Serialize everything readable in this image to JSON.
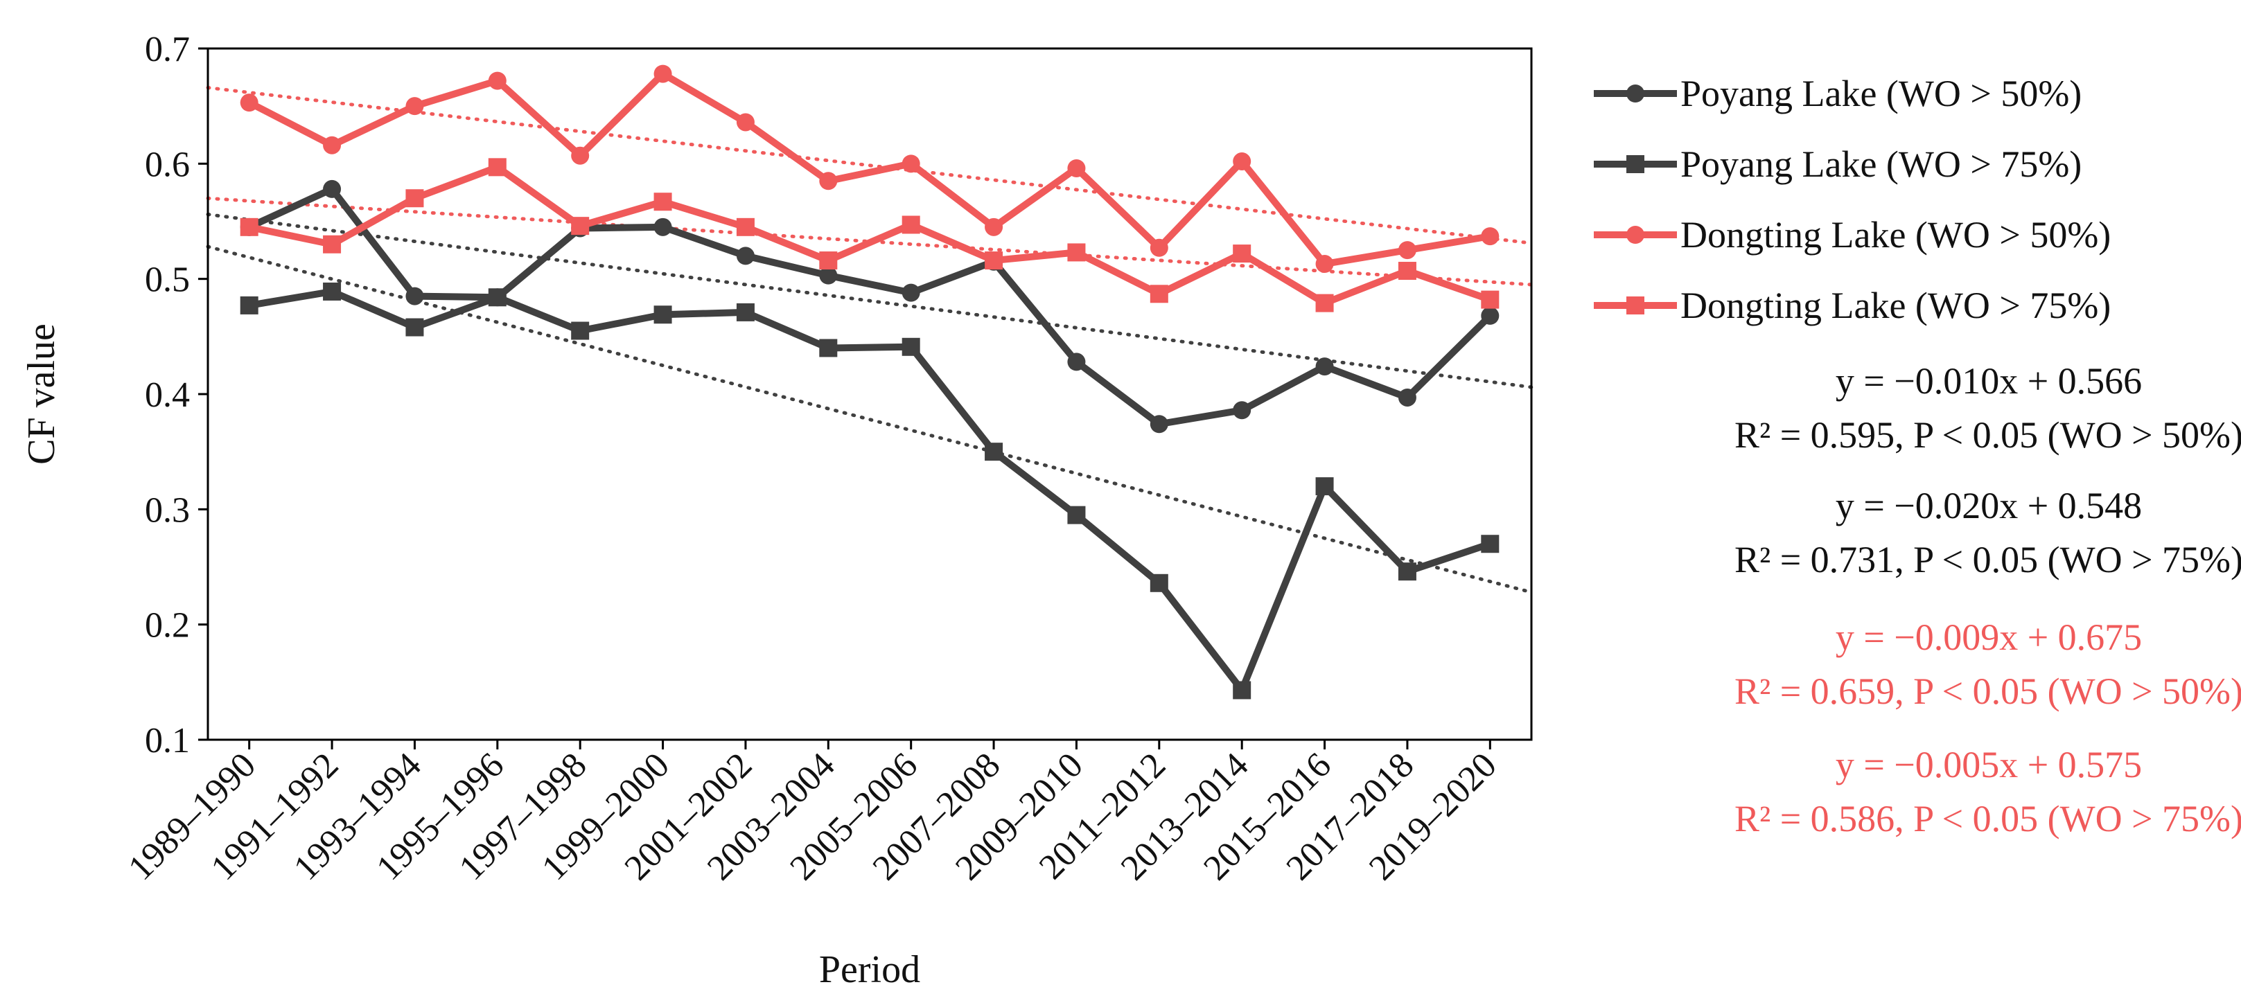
{
  "chart_data": {
    "type": "line",
    "title": "",
    "xlabel": "Period",
    "ylabel": "CF value",
    "ylim": [
      0.1,
      0.7
    ],
    "yticks": [
      "0.1",
      "0.2",
      "0.3",
      "0.4",
      "0.5",
      "0.6",
      "0.7"
    ],
    "grid": false,
    "legend_position": "right",
    "categories": [
      "1989–1990",
      "1991–1992",
      "1993–1994",
      "1995–1996",
      "1997–1998",
      "1999–2000",
      "2001–2002",
      "2003–2004",
      "2005–2006",
      "2007–2008",
      "2009–2010",
      "2011–2012",
      "2013–2014",
      "2015–2016",
      "2017–2018",
      "2019–2020"
    ],
    "series": [
      {
        "name": "Poyang Lake (WO > 50%)",
        "color": "#404040",
        "marker": "circle",
        "values": [
          0.545,
          0.578,
          0.485,
          0.484,
          0.544,
          0.545,
          0.52,
          0.503,
          0.488,
          0.515,
          0.428,
          0.374,
          0.386,
          0.424,
          0.397,
          0.468
        ]
      },
      {
        "name": "Poyang Lake (WO > 75%)",
        "color": "#404040",
        "marker": "square",
        "values": [
          0.477,
          0.489,
          0.458,
          0.484,
          0.455,
          0.469,
          0.471,
          0.44,
          0.441,
          0.35,
          0.295,
          0.236,
          0.143,
          0.32,
          0.246,
          0.27
        ]
      },
      {
        "name": "Dongting Lake (WO > 50%)",
        "color": "#f05a5a",
        "marker": "circle",
        "values": [
          0.653,
          0.616,
          0.65,
          0.672,
          0.607,
          0.678,
          0.636,
          0.585,
          0.6,
          0.545,
          0.596,
          0.527,
          0.602,
          0.513,
          0.525,
          0.537
        ]
      },
      {
        "name": "Dongting Lake (WO > 75%)",
        "color": "#f05a5a",
        "marker": "square",
        "values": [
          0.545,
          0.53,
          0.57,
          0.597,
          0.546,
          0.567,
          0.545,
          0.516,
          0.547,
          0.516,
          0.523,
          0.487,
          0.522,
          0.479,
          0.507,
          0.482
        ]
      }
    ],
    "trendlines": [
      {
        "series": "Poyang Lake (WO > 50%)",
        "slope": -0.01,
        "intercept": 0.566,
        "color": "#404040",
        "style": "dotted"
      },
      {
        "series": "Poyang Lake (WO > 75%)",
        "slope": -0.02,
        "intercept": 0.548,
        "color": "#404040",
        "style": "dotted"
      },
      {
        "series": "Dongting Lake (WO > 50%)",
        "slope": -0.009,
        "intercept": 0.675,
        "color": "#f05a5a",
        "style": "dotted"
      },
      {
        "series": "Dongting Lake (WO > 75%)",
        "slope": -0.005,
        "intercept": 0.575,
        "color": "#f05a5a",
        "style": "dotted"
      }
    ],
    "annotations": [
      {
        "line1": "y = −0.010x + 0.566",
        "line2": "R² = 0.595, P < 0.05 (WO > 50%)",
        "color": "#111111"
      },
      {
        "line1": "y = −0.020x + 0.548",
        "line2": "R² = 0.731, P  < 0.05 (WO > 75%)",
        "color": "#111111"
      },
      {
        "line1": "y = −0.009x + 0.675",
        "line2": "R² = 0.659, P < 0.05 (WO > 50%)",
        "color": "#f05a5a"
      },
      {
        "line1": "y = −0.005x + 0.575",
        "line2": "R² = 0.586, P < 0.05 (WO > 75%)",
        "color": "#f05a5a"
      }
    ]
  }
}
